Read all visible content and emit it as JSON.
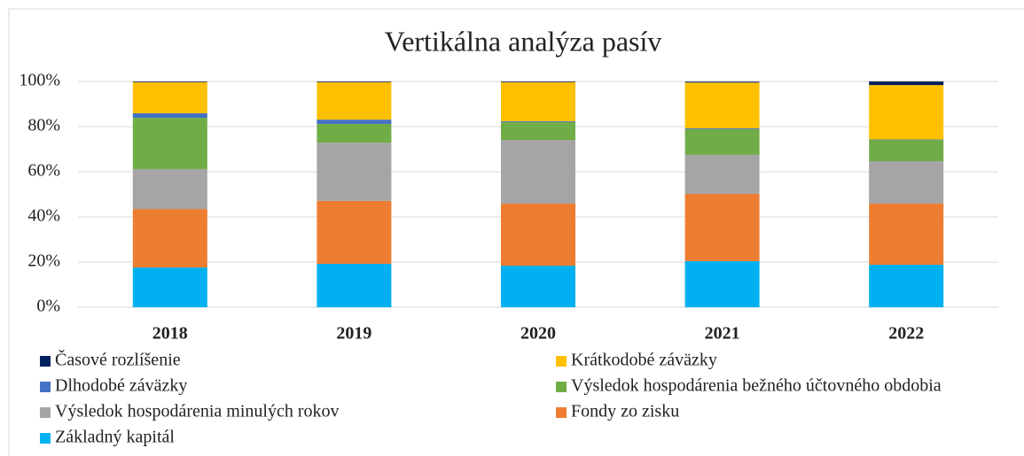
{
  "chart_data": {
    "type": "stacked_bar",
    "title": "Vertikálna analýza pasív",
    "categories": [
      "2018",
      "2019",
      "2020",
      "2021",
      "2022"
    ],
    "series": [
      {
        "name": "Časové rozlíšenie",
        "color": "#002060",
        "values": [
          0.3,
          0.3,
          0.3,
          0.4,
          1.6
        ]
      },
      {
        "name": "Krátkodobé záväzky",
        "color": "#ffc000",
        "values": [
          13.8,
          16.6,
          17.3,
          20.3,
          24.1
        ]
      },
      {
        "name": "Dlhodobé záväzky",
        "color": "#4472c4",
        "values": [
          2.0,
          1.9,
          0.4,
          0.4,
          0.2
        ]
      },
      {
        "name": "Výsledok hospodárenia bežného účtovného obdobia",
        "color": "#70ad47",
        "values": [
          22.7,
          8.3,
          7.9,
          11.3,
          9.4
        ]
      },
      {
        "name": "Výsledok hospodárenia minulých rokov",
        "color": "#a5a5a5",
        "values": [
          17.7,
          25.8,
          28.2,
          17.3,
          18.8
        ]
      },
      {
        "name": "Fondy zo zisku",
        "color": "#ed7d31",
        "values": [
          25.9,
          27.9,
          27.5,
          29.8,
          27.1
        ]
      },
      {
        "name": "Základný kapitál",
        "color": "#00b0f0",
        "values": [
          17.6,
          19.2,
          18.4,
          20.4,
          18.8
        ]
      }
    ],
    "ylim": [
      0,
      100
    ],
    "yticks": [
      {
        "value": 0,
        "label": "0%"
      },
      {
        "value": 20,
        "label": "20%"
      },
      {
        "value": 40,
        "label": "40%"
      },
      {
        "value": 60,
        "label": "60%"
      },
      {
        "value": 80,
        "label": "80%"
      },
      {
        "value": 100,
        "label": "100%"
      }
    ],
    "grid": true
  }
}
